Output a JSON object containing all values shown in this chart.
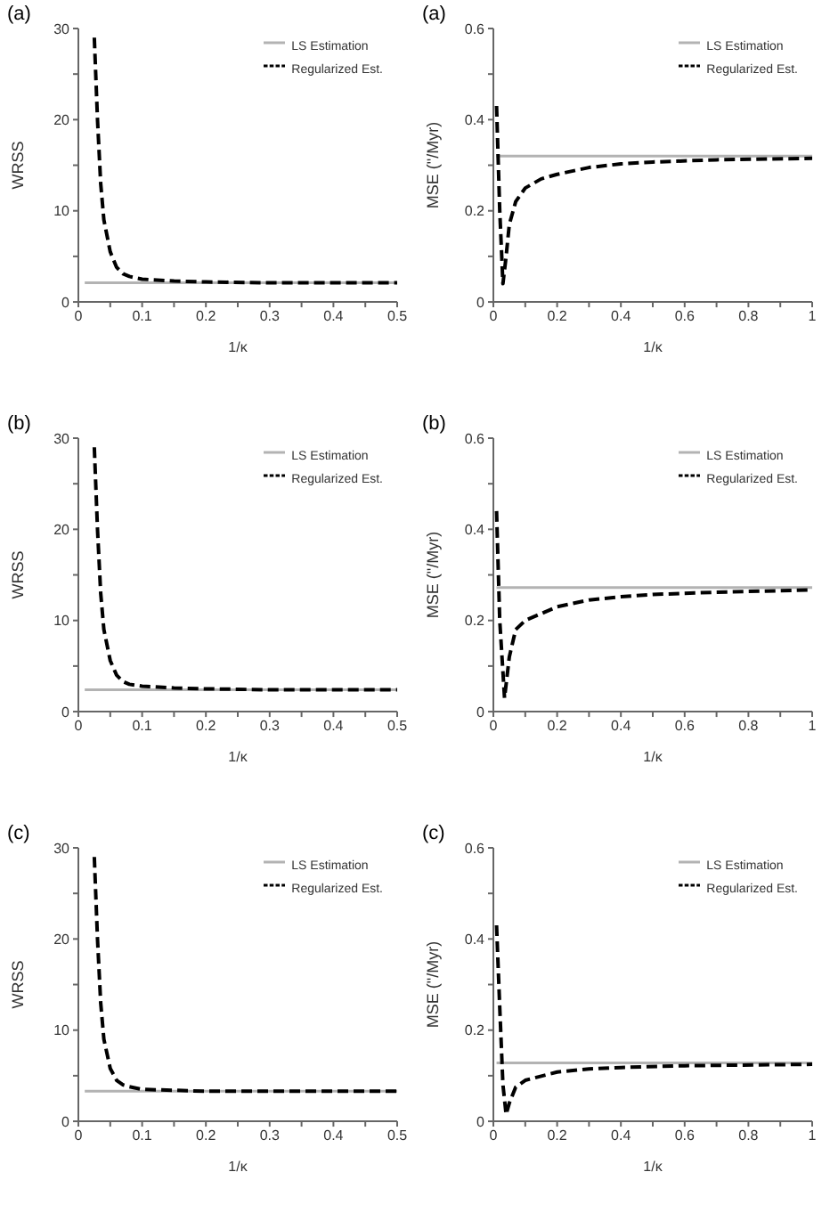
{
  "chart_data": [
    {
      "type": "line",
      "title": "(a)",
      "xlabel": "1/κ",
      "ylabel": "WRSS",
      "xlim": [
        0,
        0.5
      ],
      "ylim": [
        0,
        30
      ],
      "legend": "top right",
      "marker": "none",
      "xticks": [
        0,
        {
          "value": 0.05,
          "label": null
        },
        0.1,
        {
          "value": 0.15,
          "label": null
        },
        0.2,
        {
          "value": 0.25,
          "label": null
        },
        0.3,
        {
          "value": 0.35,
          "label": null
        },
        0.4,
        {
          "value": 0.45,
          "label": null
        },
        0.5
      ],
      "yticks": [
        0,
        {
          "value": 5,
          "label": null
        },
        10,
        {
          "value": 15,
          "label": null
        },
        20,
        {
          "value": 25,
          "label": null
        },
        30
      ],
      "series": [
        {
          "name": "LS Estimation",
          "color": "#b3b3b3",
          "line_style": "solid",
          "x": [
            0.01,
            0.5
          ],
          "values": [
            2.1,
            2.1
          ]
        },
        {
          "name": "Regularized Est.",
          "color": "#000000",
          "line_style": "dashed",
          "x": [
            0.025,
            0.03,
            0.035,
            0.04,
            0.05,
            0.06,
            0.07,
            0.08,
            0.1,
            0.15,
            0.2,
            0.3,
            0.5
          ],
          "values": [
            29,
            20,
            13,
            9,
            5.5,
            3.8,
            3.1,
            2.8,
            2.5,
            2.3,
            2.2,
            2.1,
            2.1
          ]
        }
      ]
    },
    {
      "type": "line",
      "title": "(a)",
      "xlabel": "1/κ",
      "ylabel": "MSE (\"/Myr)",
      "xlim": [
        0,
        1
      ],
      "ylim": [
        0,
        0.6
      ],
      "legend": "top right",
      "marker": "none",
      "xticks": [
        0,
        {
          "value": 0.1,
          "label": null
        },
        0.2,
        {
          "value": 0.3,
          "label": null
        },
        0.4,
        {
          "value": 0.5,
          "label": null
        },
        0.6,
        {
          "value": 0.7,
          "label": null
        },
        0.8,
        {
          "value": 0.9,
          "label": null
        },
        1
      ],
      "yticks": [
        0,
        {
          "value": 0.1,
          "label": null
        },
        0.2,
        {
          "value": 0.3,
          "label": null
        },
        0.4,
        {
          "value": 0.5,
          "label": null
        },
        0.6
      ],
      "series": [
        {
          "name": "LS Estimation",
          "color": "#b3b3b3",
          "line_style": "solid",
          "x": [
            0.01,
            1
          ],
          "values": [
            0.32,
            0.32
          ]
        },
        {
          "name": "Regularized Est.",
          "color": "#000000",
          "line_style": "dashed",
          "x": [
            0.01,
            0.02,
            0.03,
            0.04,
            0.05,
            0.07,
            0.1,
            0.15,
            0.2,
            0.3,
            0.4,
            0.5,
            0.7,
            1
          ],
          "values": [
            0.43,
            0.2,
            0.04,
            0.1,
            0.17,
            0.22,
            0.25,
            0.27,
            0.28,
            0.295,
            0.303,
            0.307,
            0.312,
            0.315
          ]
        }
      ]
    },
    {
      "type": "line",
      "title": "(b)",
      "xlabel": "1/κ",
      "ylabel": "WRSS",
      "xlim": [
        0,
        0.5
      ],
      "ylim": [
        0,
        30
      ],
      "legend": "top right",
      "marker": "none",
      "xticks": [
        0,
        {
          "value": 0.05,
          "label": null
        },
        0.1,
        {
          "value": 0.15,
          "label": null
        },
        0.2,
        {
          "value": 0.25,
          "label": null
        },
        0.3,
        {
          "value": 0.35,
          "label": null
        },
        0.4,
        {
          "value": 0.45,
          "label": null
        },
        0.5
      ],
      "yticks": [
        0,
        {
          "value": 5,
          "label": null
        },
        10,
        {
          "value": 15,
          "label": null
        },
        20,
        {
          "value": 25,
          "label": null
        },
        30
      ],
      "series": [
        {
          "name": "LS Estimation",
          "color": "#b3b3b3",
          "line_style": "solid",
          "x": [
            0.01,
            0.5
          ],
          "values": [
            2.4,
            2.4
          ]
        },
        {
          "name": "Regularized Est.",
          "color": "#000000",
          "line_style": "dashed",
          "x": [
            0.025,
            0.03,
            0.035,
            0.04,
            0.05,
            0.06,
            0.07,
            0.08,
            0.1,
            0.15,
            0.2,
            0.3,
            0.5
          ],
          "values": [
            29,
            20,
            13,
            9,
            5.6,
            4,
            3.3,
            3.0,
            2.8,
            2.6,
            2.5,
            2.4,
            2.4
          ]
        }
      ]
    },
    {
      "type": "line",
      "title": "(b)",
      "xlabel": "1/κ",
      "ylabel": "MSE (\"/Myr)",
      "xlim": [
        0,
        1
      ],
      "ylim": [
        0,
        0.6
      ],
      "legend": "top right",
      "marker": "none",
      "xticks": [
        0,
        {
          "value": 0.1,
          "label": null
        },
        0.2,
        {
          "value": 0.3,
          "label": null
        },
        0.4,
        {
          "value": 0.5,
          "label": null
        },
        0.6,
        {
          "value": 0.7,
          "label": null
        },
        0.8,
        {
          "value": 0.9,
          "label": null
        },
        1
      ],
      "yticks": [
        0,
        {
          "value": 0.1,
          "label": null
        },
        0.2,
        {
          "value": 0.3,
          "label": null
        },
        0.4,
        {
          "value": 0.5,
          "label": null
        },
        0.6
      ],
      "series": [
        {
          "name": "LS Estimation",
          "color": "#b3b3b3",
          "line_style": "solid",
          "x": [
            0.01,
            1
          ],
          "values": [
            0.272,
            0.272
          ]
        },
        {
          "name": "Regularized Est.",
          "color": "#000000",
          "line_style": "dashed",
          "x": [
            0.01,
            0.02,
            0.035,
            0.05,
            0.07,
            0.1,
            0.2,
            0.3,
            0.4,
            0.5,
            0.7,
            1
          ],
          "values": [
            0.44,
            0.2,
            0.03,
            0.12,
            0.18,
            0.2,
            0.23,
            0.245,
            0.252,
            0.257,
            0.262,
            0.267
          ]
        }
      ]
    },
    {
      "type": "line",
      "title": "(c)",
      "xlabel": "1/κ",
      "ylabel": "WRSS",
      "xlim": [
        0,
        0.5
      ],
      "ylim": [
        0,
        30
      ],
      "legend": "top right",
      "marker": "none",
      "xticks": [
        0,
        {
          "value": 0.05,
          "label": null
        },
        0.1,
        {
          "value": 0.15,
          "label": null
        },
        0.2,
        {
          "value": 0.25,
          "label": null
        },
        0.3,
        {
          "value": 0.35,
          "label": null
        },
        0.4,
        {
          "value": 0.45,
          "label": null
        },
        0.5
      ],
      "yticks": [
        0,
        {
          "value": 5,
          "label": null
        },
        10,
        {
          "value": 15,
          "label": null
        },
        20,
        {
          "value": 25,
          "label": null
        },
        30
      ],
      "series": [
        {
          "name": "LS Estimation",
          "color": "#b3b3b3",
          "line_style": "solid",
          "x": [
            0.01,
            0.5
          ],
          "values": [
            3.3,
            3.3
          ]
        },
        {
          "name": "Regularized Est.",
          "color": "#000000",
          "line_style": "dashed",
          "x": [
            0.025,
            0.03,
            0.035,
            0.04,
            0.05,
            0.06,
            0.07,
            0.08,
            0.1,
            0.15,
            0.2,
            0.3,
            0.5
          ],
          "values": [
            29,
            20,
            13,
            9,
            5.8,
            4.5,
            4.0,
            3.8,
            3.5,
            3.4,
            3.3,
            3.3,
            3.3
          ]
        }
      ]
    },
    {
      "type": "line",
      "title": "(c)",
      "xlabel": "1/κ",
      "ylabel": "MSE (\"/Myr)",
      "xlim": [
        0,
        1
      ],
      "ylim": [
        0,
        0.6
      ],
      "legend": "top right",
      "marker": "none",
      "xticks": [
        0,
        {
          "value": 0.1,
          "label": null
        },
        0.2,
        {
          "value": 0.3,
          "label": null
        },
        0.4,
        {
          "value": 0.5,
          "label": null
        },
        0.6,
        {
          "value": 0.7,
          "label": null
        },
        0.8,
        {
          "value": 0.9,
          "label": null
        },
        1
      ],
      "yticks": [
        0,
        {
          "value": 0.1,
          "label": null
        },
        0.2,
        {
          "value": 0.3,
          "label": null
        },
        0.4,
        {
          "value": 0.5,
          "label": null
        },
        0.6
      ],
      "series": [
        {
          "name": "LS Estimation",
          "color": "#b3b3b3",
          "line_style": "solid",
          "x": [
            0.01,
            1
          ],
          "values": [
            0.128,
            0.128
          ]
        },
        {
          "name": "Regularized Est.",
          "color": "#000000",
          "line_style": "dashed",
          "x": [
            0.01,
            0.02,
            0.03,
            0.04,
            0.05,
            0.07,
            0.1,
            0.2,
            0.3,
            0.4,
            0.6,
            1
          ],
          "values": [
            0.43,
            0.25,
            0.08,
            0.015,
            0.04,
            0.075,
            0.09,
            0.108,
            0.115,
            0.118,
            0.122,
            0.125
          ]
        }
      ]
    }
  ]
}
